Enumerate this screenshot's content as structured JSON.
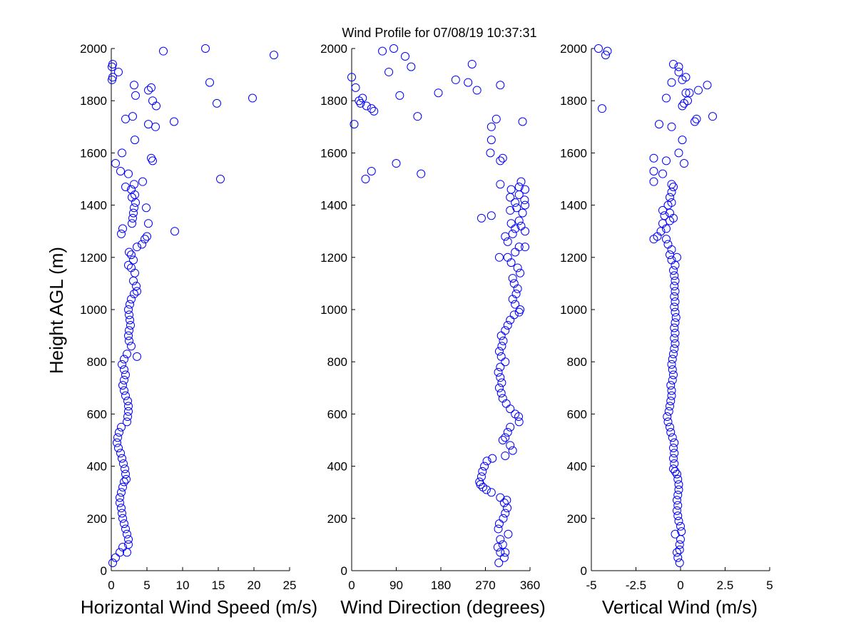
{
  "figure_title": "Wind Profile for  07/08/19 10:37:31",
  "colors": {
    "marker": "#0000ff",
    "axis": "#000000",
    "background": "#ffffff"
  },
  "chart_data": [
    {
      "type": "scatter",
      "name": "horizontal-wind-speed",
      "xlabel": "Horizontal Wind Speed (m/s)",
      "ylabel": "Height AGL (m)",
      "xlim": [
        0,
        25
      ],
      "ylim": [
        0,
        2000
      ],
      "xticks": [
        "0",
        "5",
        "10",
        "15",
        "20",
        "25"
      ],
      "yticks": [
        "0",
        "200",
        "400",
        "600",
        "800",
        "1000",
        "1200",
        "1400",
        "1600",
        "1800",
        "2000"
      ],
      "marker": "circle-open",
      "points": [
        [
          0.2,
          30
        ],
        [
          0.6,
          50
        ],
        [
          1.2,
          70
        ],
        [
          2.2,
          70
        ],
        [
          1.6,
          90
        ],
        [
          2.4,
          100
        ],
        [
          2.4,
          120
        ],
        [
          2.2,
          140
        ],
        [
          2.0,
          160
        ],
        [
          1.8,
          180
        ],
        [
          1.6,
          200
        ],
        [
          1.5,
          220
        ],
        [
          1.4,
          240
        ],
        [
          1.2,
          260
        ],
        [
          1.2,
          280
        ],
        [
          1.4,
          300
        ],
        [
          1.6,
          320
        ],
        [
          1.8,
          340
        ],
        [
          2.1,
          350
        ],
        [
          2.0,
          370
        ],
        [
          1.9,
          390
        ],
        [
          1.7,
          410
        ],
        [
          1.5,
          430
        ],
        [
          1.3,
          450
        ],
        [
          1.0,
          470
        ],
        [
          0.8,
          490
        ],
        [
          0.9,
          510
        ],
        [
          1.1,
          530
        ],
        [
          1.4,
          550
        ],
        [
          2.2,
          570
        ],
        [
          2.3,
          590
        ],
        [
          2.4,
          610
        ],
        [
          2.4,
          630
        ],
        [
          2.3,
          650
        ],
        [
          2.0,
          670
        ],
        [
          1.8,
          690
        ],
        [
          1.6,
          710
        ],
        [
          1.8,
          730
        ],
        [
          2.0,
          750
        ],
        [
          1.8,
          770
        ],
        [
          1.5,
          790
        ],
        [
          1.8,
          810
        ],
        [
          2.2,
          830
        ],
        [
          3.6,
          820
        ],
        [
          2.8,
          860
        ],
        [
          2.5,
          880
        ],
        [
          2.4,
          900
        ],
        [
          2.5,
          920
        ],
        [
          2.7,
          940
        ],
        [
          2.6,
          960
        ],
        [
          2.5,
          980
        ],
        [
          2.4,
          1000
        ],
        [
          2.6,
          1020
        ],
        [
          2.8,
          1040
        ],
        [
          3.2,
          1060
        ],
        [
          3.6,
          1070
        ],
        [
          3.5,
          1090
        ],
        [
          3.1,
          1110
        ],
        [
          3.3,
          1140
        ],
        [
          2.8,
          1160
        ],
        [
          2.4,
          1170
        ],
        [
          3.1,
          1190
        ],
        [
          2.8,
          1210
        ],
        [
          2.5,
          1220
        ],
        [
          3.6,
          1240
        ],
        [
          4.3,
          1250
        ],
        [
          4.7,
          1270
        ],
        [
          5.0,
          1280
        ],
        [
          8.9,
          1300
        ],
        [
          1.4,
          1290
        ],
        [
          1.6,
          1310
        ],
        [
          2.9,
          1330
        ],
        [
          5.2,
          1330
        ],
        [
          3.0,
          1350
        ],
        [
          3.1,
          1370
        ],
        [
          3.2,
          1390
        ],
        [
          4.9,
          1390
        ],
        [
          3.4,
          1410
        ],
        [
          2.9,
          1430
        ],
        [
          3.3,
          1440
        ],
        [
          2.8,
          1460
        ],
        [
          3.2,
          1480
        ],
        [
          2.0,
          1470
        ],
        [
          4.4,
          1490
        ],
        [
          15.3,
          1500
        ],
        [
          1.3,
          1530
        ],
        [
          2.4,
          1520
        ],
        [
          0.6,
          1560
        ],
        [
          5.8,
          1570
        ],
        [
          5.6,
          1580
        ],
        [
          1.5,
          1600
        ],
        [
          3.3,
          1650
        ],
        [
          6.2,
          1700
        ],
        [
          5.2,
          1710
        ],
        [
          8.8,
          1720
        ],
        [
          2.0,
          1730
        ],
        [
          3.0,
          1740
        ],
        [
          6.3,
          1780
        ],
        [
          14.8,
          1790
        ],
        [
          5.8,
          1800
        ],
        [
          19.8,
          1810
        ],
        [
          3.4,
          1820
        ],
        [
          5.6,
          1850
        ],
        [
          5.2,
          1840
        ],
        [
          3.2,
          1860
        ],
        [
          13.8,
          1870
        ],
        [
          0.1,
          1880
        ],
        [
          0.2,
          1890
        ],
        [
          1.0,
          1910
        ],
        [
          0.1,
          1930
        ],
        [
          0.2,
          1940
        ],
        [
          22.8,
          1975
        ],
        [
          7.3,
          1990
        ],
        [
          13.2,
          2000
        ]
      ]
    },
    {
      "type": "scatter",
      "name": "wind-direction",
      "xlabel": "Wind Direction (degrees)",
      "ylabel": "",
      "xlim": [
        0,
        360
      ],
      "ylim": [
        0,
        2000
      ],
      "xticks": [
        "0",
        "90",
        "180",
        "270",
        "360"
      ],
      "yticks": [
        "0",
        "200",
        "400",
        "600",
        "800",
        "1000",
        "1200",
        "1400",
        "1600",
        "1800",
        "2000"
      ],
      "marker": "circle-open",
      "points": [
        [
          297,
          30
        ],
        [
          308,
          50
        ],
        [
          300,
          70
        ],
        [
          310,
          70
        ],
        [
          295,
          90
        ],
        [
          305,
          100
        ],
        [
          300,
          120
        ],
        [
          316,
          140
        ],
        [
          296,
          160
        ],
        [
          298,
          180
        ],
        [
          306,
          200
        ],
        [
          310,
          220
        ],
        [
          314,
          240
        ],
        [
          308,
          260
        ],
        [
          313,
          270
        ],
        [
          300,
          280
        ],
        [
          282,
          300
        ],
        [
          272,
          310
        ],
        [
          265,
          320
        ],
        [
          260,
          330
        ],
        [
          258,
          340
        ],
        [
          262,
          360
        ],
        [
          264,
          380
        ],
        [
          268,
          400
        ],
        [
          273,
          420
        ],
        [
          284,
          430
        ],
        [
          310,
          440
        ],
        [
          325,
          460
        ],
        [
          320,
          480
        ],
        [
          305,
          500
        ],
        [
          310,
          510
        ],
        [
          315,
          530
        ],
        [
          320,
          550
        ],
        [
          338,
          570
        ],
        [
          337,
          590
        ],
        [
          330,
          600
        ],
        [
          320,
          620
        ],
        [
          312,
          640
        ],
        [
          305,
          660
        ],
        [
          302,
          680
        ],
        [
          298,
          700
        ],
        [
          303,
          720
        ],
        [
          300,
          740
        ],
        [
          296,
          760
        ],
        [
          300,
          780
        ],
        [
          310,
          800
        ],
        [
          302,
          820
        ],
        [
          298,
          840
        ],
        [
          303,
          860
        ],
        [
          306,
          880
        ],
        [
          302,
          900
        ],
        [
          310,
          920
        ],
        [
          315,
          940
        ],
        [
          320,
          960
        ],
        [
          328,
          980
        ],
        [
          338,
          990
        ],
        [
          340,
          1000
        ],
        [
          330,
          1020
        ],
        [
          325,
          1040
        ],
        [
          332,
          1060
        ],
        [
          335,
          1080
        ],
        [
          328,
          1100
        ],
        [
          325,
          1120
        ],
        [
          340,
          1140
        ],
        [
          335,
          1160
        ],
        [
          322,
          1180
        ],
        [
          315,
          1200
        ],
        [
          298,
          1200
        ],
        [
          330,
          1220
        ],
        [
          338,
          1240
        ],
        [
          350,
          1240
        ],
        [
          315,
          1260
        ],
        [
          310,
          1280
        ],
        [
          325,
          1290
        ],
        [
          350,
          1300
        ],
        [
          330,
          1310
        ],
        [
          342,
          1320
        ],
        [
          322,
          1330
        ],
        [
          338,
          1340
        ],
        [
          262,
          1350
        ],
        [
          282,
          1360
        ],
        [
          345,
          1370
        ],
        [
          320,
          1380
        ],
        [
          333,
          1390
        ],
        [
          350,
          1400
        ],
        [
          330,
          1410
        ],
        [
          349,
          1420
        ],
        [
          320,
          1430
        ],
        [
          338,
          1440
        ],
        [
          350,
          1460
        ],
        [
          322,
          1460
        ],
        [
          338,
          1470
        ],
        [
          300,
          1480
        ],
        [
          342,
          1490
        ],
        [
          28,
          1500
        ],
        [
          40,
          1530
        ],
        [
          90,
          1560
        ],
        [
          140,
          1520
        ],
        [
          300,
          1570
        ],
        [
          305,
          1580
        ],
        [
          280,
          1600
        ],
        [
          282,
          1650
        ],
        [
          282,
          1700
        ],
        [
          345,
          1720
        ],
        [
          292,
          1730
        ],
        [
          5,
          1710
        ],
        [
          133,
          1740
        ],
        [
          18,
          1790
        ],
        [
          22,
          1810
        ],
        [
          15,
          1800
        ],
        [
          40,
          1770
        ],
        [
          30,
          1780
        ],
        [
          45,
          1760
        ],
        [
          97,
          1820
        ],
        [
          175,
          1830
        ],
        [
          253,
          1840
        ],
        [
          8,
          1850
        ],
        [
          300,
          1860
        ],
        [
          235,
          1870
        ],
        [
          210,
          1880
        ],
        [
          0,
          1890
        ],
        [
          75,
          1910
        ],
        [
          120,
          1930
        ],
        [
          243,
          1940
        ],
        [
          108,
          1970
        ],
        [
          62,
          1990
        ],
        [
          85,
          2000
        ]
      ]
    },
    {
      "type": "scatter",
      "name": "vertical-wind",
      "xlabel": "Vertical Wind (m/s)",
      "ylabel": "",
      "xlim": [
        -5,
        5
      ],
      "ylim": [
        0,
        2000
      ],
      "xticks": [
        "-5",
        "-2.5",
        "0",
        "2.5",
        "5"
      ],
      "yticks": [
        "0",
        "200",
        "400",
        "600",
        "800",
        "1000",
        "1200",
        "1400",
        "1600",
        "1800",
        "2000"
      ],
      "marker": "circle-open",
      "points": [
        [
          -0.05,
          30
        ],
        [
          -0.15,
          50
        ],
        [
          -0.2,
          70
        ],
        [
          -0.05,
          80
        ],
        [
          -0.05,
          100
        ],
        [
          0.0,
          120
        ],
        [
          -0.3,
          140
        ],
        [
          0.05,
          150
        ],
        [
          0.0,
          170
        ],
        [
          -0.1,
          190
        ],
        [
          -0.15,
          210
        ],
        [
          -0.2,
          230
        ],
        [
          -0.15,
          250
        ],
        [
          -0.2,
          270
        ],
        [
          -0.15,
          290
        ],
        [
          -0.1,
          310
        ],
        [
          -0.1,
          330
        ],
        [
          -0.15,
          350
        ],
        [
          -0.2,
          370
        ],
        [
          -0.3,
          380
        ],
        [
          -0.4,
          390
        ],
        [
          -0.35,
          410
        ],
        [
          -0.4,
          430
        ],
        [
          -0.35,
          450
        ],
        [
          -0.4,
          470
        ],
        [
          -0.35,
          490
        ],
        [
          -0.45,
          510
        ],
        [
          -0.55,
          530
        ],
        [
          -0.6,
          550
        ],
        [
          -0.7,
          570
        ],
        [
          -0.75,
          590
        ],
        [
          -0.65,
          610
        ],
        [
          -0.6,
          630
        ],
        [
          -0.55,
          650
        ],
        [
          -0.5,
          670
        ],
        [
          -0.5,
          690
        ],
        [
          -0.55,
          710
        ],
        [
          -0.45,
          730
        ],
        [
          -0.4,
          750
        ],
        [
          -0.45,
          770
        ],
        [
          -0.5,
          790
        ],
        [
          -0.45,
          810
        ],
        [
          -0.4,
          830
        ],
        [
          -0.35,
          850
        ],
        [
          -0.3,
          870
        ],
        [
          -0.35,
          890
        ],
        [
          -0.3,
          910
        ],
        [
          -0.35,
          930
        ],
        [
          -0.3,
          950
        ],
        [
          -0.25,
          970
        ],
        [
          -0.3,
          990
        ],
        [
          -0.35,
          1010
        ],
        [
          -0.3,
          1030
        ],
        [
          -0.35,
          1050
        ],
        [
          -0.3,
          1070
        ],
        [
          -0.35,
          1090
        ],
        [
          -0.3,
          1110
        ],
        [
          -0.35,
          1130
        ],
        [
          -0.4,
          1150
        ],
        [
          -0.3,
          1170
        ],
        [
          -0.5,
          1190
        ],
        [
          -0.2,
          1200
        ],
        [
          -0.6,
          1210
        ],
        [
          -0.5,
          1230
        ],
        [
          -0.7,
          1250
        ],
        [
          -0.8,
          1270
        ],
        [
          -1.5,
          1270
        ],
        [
          -1.3,
          1280
        ],
        [
          -1.1,
          1300
        ],
        [
          -0.8,
          1310
        ],
        [
          -1.0,
          1330
        ],
        [
          -0.6,
          1340
        ],
        [
          -0.4,
          1350
        ],
        [
          -0.9,
          1360
        ],
        [
          -0.6,
          1370
        ],
        [
          -1.0,
          1380
        ],
        [
          -0.7,
          1400
        ],
        [
          -0.5,
          1410
        ],
        [
          -0.6,
          1430
        ],
        [
          -0.5,
          1450
        ],
        [
          -0.4,
          1470
        ],
        [
          -0.5,
          1480
        ],
        [
          -1.5,
          1490
        ],
        [
          -1.5,
          1530
        ],
        [
          -1.0,
          1520
        ],
        [
          0.2,
          1560
        ],
        [
          -0.8,
          1570
        ],
        [
          -1.5,
          1580
        ],
        [
          -0.1,
          1600
        ],
        [
          0.1,
          1650
        ],
        [
          -1.2,
          1710
        ],
        [
          -0.5,
          1700
        ],
        [
          0.8,
          1720
        ],
        [
          0.9,
          1730
        ],
        [
          1.8,
          1740
        ],
        [
          0.1,
          1780
        ],
        [
          0.2,
          1790
        ],
        [
          -4.4,
          1770
        ],
        [
          0.4,
          1800
        ],
        [
          -0.8,
          1810
        ],
        [
          0.3,
          1830
        ],
        [
          0.5,
          1830
        ],
        [
          1.0,
          1840
        ],
        [
          1.5,
          1860
        ],
        [
          -0.5,
          1870
        ],
        [
          0.1,
          1880
        ],
        [
          0.3,
          1890
        ],
        [
          -0.1,
          1910
        ],
        [
          -0.1,
          1930
        ],
        [
          -0.4,
          1940
        ],
        [
          -4.2,
          1975
        ],
        [
          -4.1,
          1990
        ],
        [
          -4.6,
          2000
        ]
      ]
    }
  ]
}
